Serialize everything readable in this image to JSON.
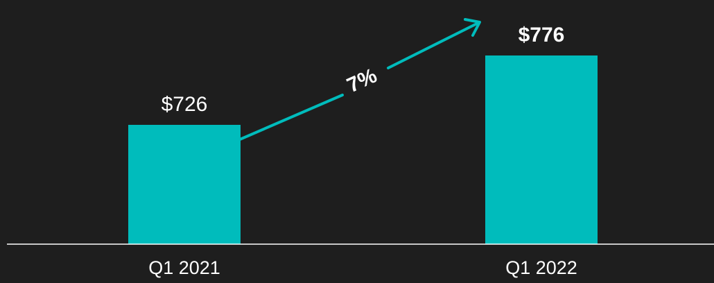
{
  "chart_data": {
    "type": "bar",
    "categories": [
      "Q1 2021",
      "Q1 2022"
    ],
    "values": [
      726,
      776
    ],
    "value_labels": [
      "$726",
      "$776"
    ],
    "growth_label": "7%",
    "ylim": [
      640,
      790
    ],
    "grid": false,
    "colors": {
      "background": "#1e1e1e",
      "bar": "#00bcbc",
      "arrow": "#00bcbc",
      "axis": "#ffffff",
      "text": "#ffffff"
    }
  }
}
